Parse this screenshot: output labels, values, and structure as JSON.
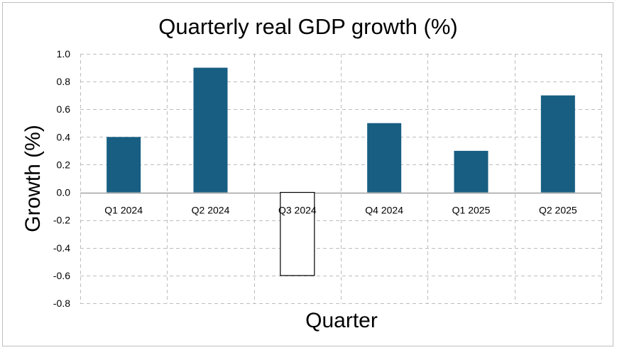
{
  "chart_data": {
    "type": "bar",
    "title": "Quarterly real GDP growth (%)",
    "xlabel": "Quarter",
    "ylabel": "Growth (%)",
    "categories": [
      "Q1 2024",
      "Q2 2024",
      "Q3 2024",
      "Q4 2024",
      "Q1 2025",
      "Q2 2025"
    ],
    "values": [
      0.4,
      0.9,
      -0.6,
      0.5,
      0.3,
      0.7
    ],
    "ylim": [
      -0.8,
      1.0
    ],
    "yticks": [
      "1.0",
      "0.8",
      "0.6",
      "0.4",
      "0.2",
      "0.0",
      "-0.2",
      "-0.4",
      "-0.6",
      "-0.8"
    ],
    "grid": true,
    "colors": {
      "positive_fill": "#175e82",
      "negative_fill": "#ffffff",
      "negative_stroke": "#000000"
    }
  }
}
